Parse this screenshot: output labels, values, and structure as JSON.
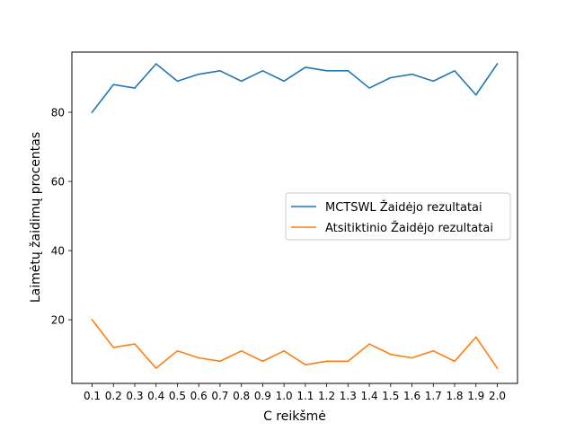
{
  "chart_data": {
    "type": "line",
    "title": "",
    "xlabel": "C reikšmė",
    "ylabel": "Laimėtų žaidimų procentas",
    "x": [
      0.1,
      0.2,
      0.3,
      0.4,
      0.5,
      0.6,
      0.7,
      0.8,
      0.9,
      1.0,
      1.1,
      1.2,
      1.3,
      1.4,
      1.5,
      1.6,
      1.7,
      1.8,
      1.9,
      2.0
    ],
    "x_tick_labels": [
      "0.1",
      "0.2",
      "0.3",
      "0.4",
      "0.5",
      "0.6",
      "0.7",
      "0.8",
      "0.9",
      "1.0",
      "1.1",
      "1.2",
      "1.3",
      "1.4",
      "1.5",
      "1.6",
      "1.7",
      "1.8",
      "1.9",
      "2.0"
    ],
    "y_ticks": [
      20,
      40,
      60,
      80
    ],
    "ylim": [
      1.6,
      97.4
    ],
    "grid": false,
    "legend_position": "center-right",
    "series": [
      {
        "name": "MCTSWL Žaidėjo rezultatai",
        "color": "#1f77b4",
        "values": [
          80,
          88,
          87,
          94,
          89,
          91,
          92,
          89,
          92,
          89,
          93,
          92,
          92,
          87,
          90,
          91,
          89,
          92,
          85,
          94
        ]
      },
      {
        "name": "Atsitiktinio Žaidėjo rezultatai",
        "color": "#ff7f0e",
        "values": [
          20,
          12,
          13,
          6,
          11,
          9,
          8,
          11,
          8,
          11,
          7,
          8,
          8,
          13,
          10,
          9,
          11,
          8,
          15,
          6
        ]
      }
    ]
  }
}
